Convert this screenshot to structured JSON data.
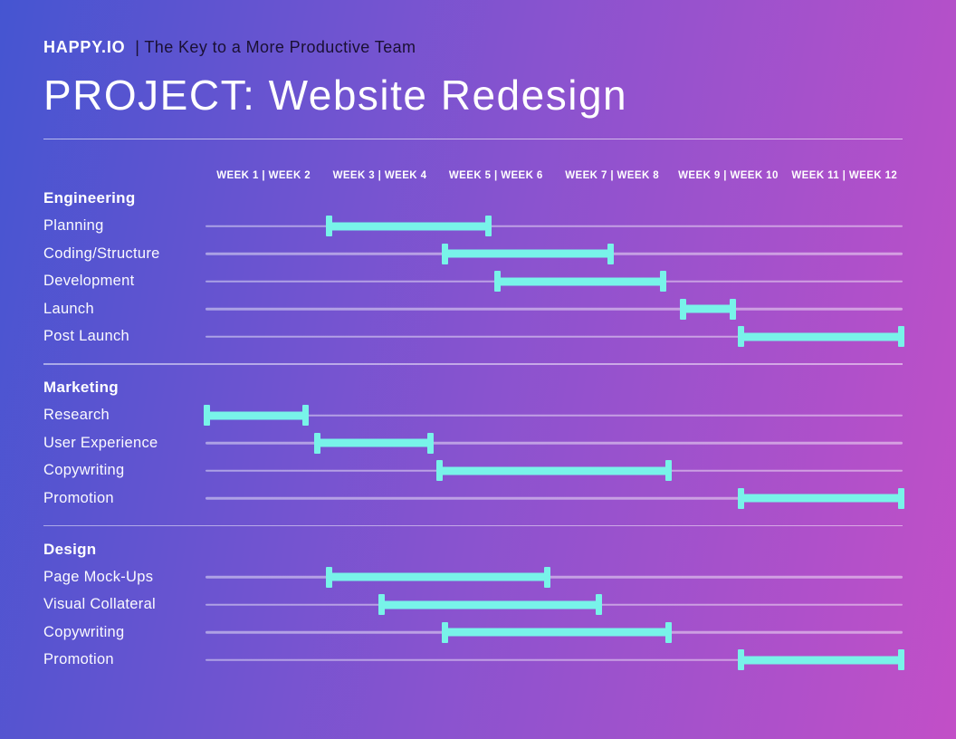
{
  "brand": {
    "name": "HAPPY.IO",
    "separator": "|",
    "tagline": "The Key to a More Productive Team"
  },
  "title": "PROJECT: Website Redesign",
  "colors": {
    "background_left": "#4555d1",
    "background_mid": "#8a53cf",
    "background_right": "#c24fc7",
    "bar": "#78f3e9",
    "track": "rgba(255,255,255,0.45)",
    "tagline_text": "#1a1033",
    "text": "#ffffff"
  },
  "chart_data": {
    "type": "gantt",
    "title": "PROJECT: Website Redesign",
    "unit": "weeks",
    "scale": {
      "min": 0,
      "max": 12,
      "note": "start/end are weeks elapsed from the beginning of Week 1"
    },
    "week_headers": [
      "WEEK 1 | WEEK 2",
      "WEEK 3 | WEEK 4",
      "WEEK 5 | WEEK 6",
      "WEEK 7 | WEEK 8",
      "WEEK 9 | WEEK 10",
      "WEEK 11 | WEEK 12"
    ],
    "sections": [
      {
        "name": "Engineering",
        "tasks": [
          {
            "label": "Planning",
            "start": 2.1,
            "end": 4.9
          },
          {
            "label": "Coding/Structure",
            "start": 4.1,
            "end": 7.0
          },
          {
            "label": "Development",
            "start": 5.0,
            "end": 7.9
          },
          {
            "label": "Launch",
            "start": 8.2,
            "end": 9.1
          },
          {
            "label": "Post Launch",
            "start": 9.2,
            "end": 12.0
          }
        ]
      },
      {
        "name": "Marketing",
        "tasks": [
          {
            "label": "Research",
            "start": 0.0,
            "end": 1.75
          },
          {
            "label": "User Experience",
            "start": 1.9,
            "end": 3.9
          },
          {
            "label": "Copywriting",
            "start": 4.0,
            "end": 8.0
          },
          {
            "label": "Promotion",
            "start": 9.2,
            "end": 12.0
          }
        ]
      },
      {
        "name": "Design",
        "tasks": [
          {
            "label": "Page Mock-Ups",
            "start": 2.1,
            "end": 5.9
          },
          {
            "label": "Visual Collateral",
            "start": 3.0,
            "end": 6.8
          },
          {
            "label": "Copywriting",
            "start": 4.1,
            "end": 8.0
          },
          {
            "label": "Promotion",
            "start": 9.2,
            "end": 12.0
          }
        ]
      }
    ]
  }
}
